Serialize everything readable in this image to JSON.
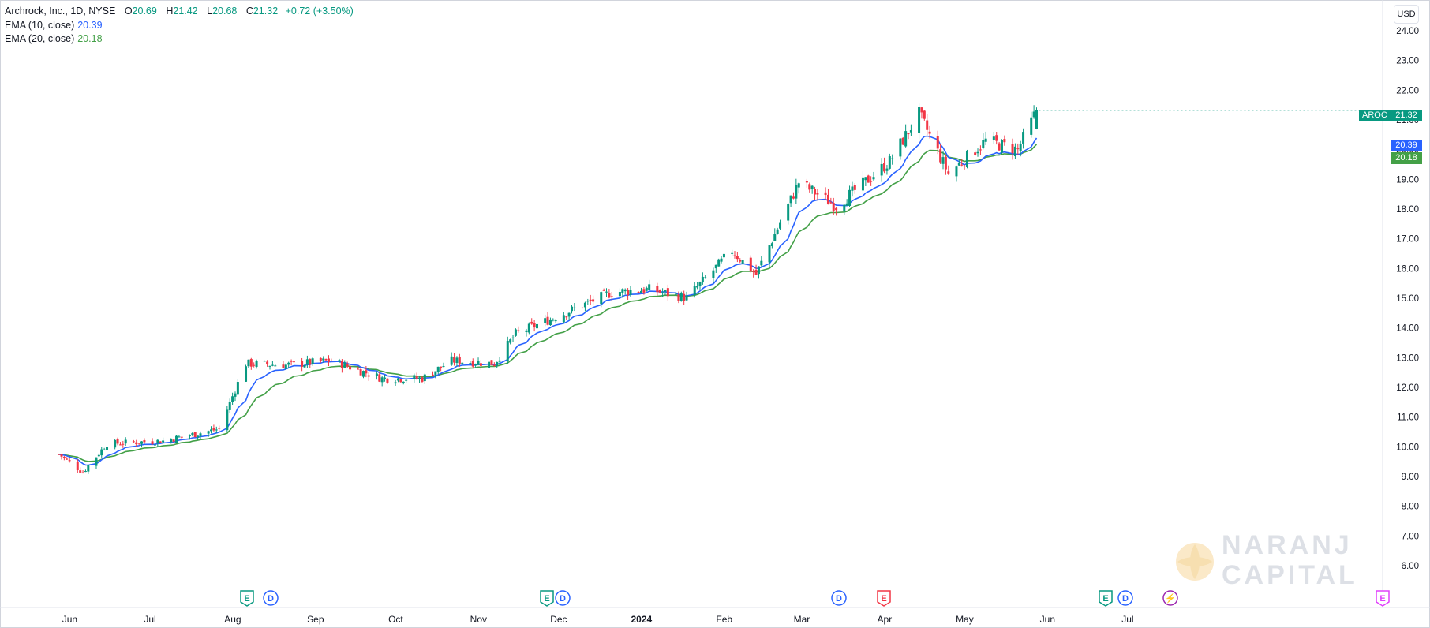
{
  "header": {
    "symbol_line": "Archrock, Inc., 1D, NYSE",
    "open_label": "O",
    "open_value": "20.69",
    "high_label": "H",
    "high_value": "21.42",
    "low_label": "L",
    "low_value": "20.68",
    "close_label": "C",
    "close_value": "21.32",
    "change": "+0.72 (+3.50%)",
    "ema10_label": "EMA (10, close)",
    "ema10_value": "20.39",
    "ema20_label": "EMA (20, close)",
    "ema20_value": "20.18"
  },
  "currency": "USD",
  "price_tags": {
    "ticker": "AROC",
    "last": "21.32",
    "ema10": "20.39",
    "ema20": "20.18"
  },
  "event_markers": [
    {
      "letter": "E",
      "kind": "earnings",
      "color": "#089981"
    },
    {
      "letter": "D",
      "kind": "dividend",
      "color": "#2962ff"
    },
    {
      "letter": "E",
      "kind": "earnings",
      "color": "#089981"
    },
    {
      "letter": "D",
      "kind": "dividend",
      "color": "#2962ff"
    },
    {
      "letter": "D",
      "kind": "dividend",
      "color": "#2962ff"
    },
    {
      "letter": "E",
      "kind": "earnings",
      "color": "#f23645"
    },
    {
      "letter": "E",
      "kind": "earnings",
      "color": "#089981"
    },
    {
      "letter": "D",
      "kind": "dividend",
      "color": "#2962ff"
    },
    {
      "letter": "⚡",
      "kind": "split",
      "color": "#9c27b0"
    },
    {
      "letter": "E",
      "kind": "earnings-upcoming",
      "color": "#e040fb"
    }
  ],
  "watermark": {
    "line1": "NARANJ",
    "line2": "CAPITAL"
  },
  "colors": {
    "up": "#089981",
    "down": "#f23645",
    "ema10": "#2962ff",
    "ema20": "#43a047",
    "header_value": "#089981"
  },
  "chart_data": {
    "type": "candlestick",
    "title": "Archrock, Inc., 1D, NYSE",
    "xlabel": "",
    "ylabel": "",
    "currency": "USD",
    "ylim": [
      5.6,
      24.5
    ],
    "y_ticks": [
      "24.00",
      "23.00",
      "22.00",
      "21.00",
      "20.00",
      "19.00",
      "18.00",
      "17.00",
      "16.00",
      "15.00",
      "14.00",
      "13.00",
      "12.00",
      "11.00",
      "10.00",
      "9.00",
      "8.00",
      "7.00",
      "6.00"
    ],
    "x_tick_labels": [
      "Jun",
      "Jul",
      "Aug",
      "Sep",
      "Oct",
      "Nov",
      "Dec",
      "2024",
      "Feb",
      "Mar",
      "Apr",
      "May",
      "Jun",
      "Jul"
    ],
    "last_close": 21.32,
    "series_points": [
      {
        "date": "2023-05-22",
        "close": 9.75
      },
      {
        "date": "2023-05-31",
        "close": 9.15
      },
      {
        "date": "2023-06-09",
        "close": 10.1
      },
      {
        "date": "2023-06-30",
        "close": 10.2
      },
      {
        "date": "2023-07-21",
        "close": 10.6
      },
      {
        "date": "2023-07-31",
        "close": 12.8
      },
      {
        "date": "2023-08-15",
        "close": 12.75
      },
      {
        "date": "2023-09-01",
        "close": 12.9
      },
      {
        "date": "2023-09-20",
        "close": 12.3
      },
      {
        "date": "2023-10-05",
        "close": 12.3
      },
      {
        "date": "2023-10-16",
        "close": 12.9
      },
      {
        "date": "2023-11-01",
        "close": 12.8
      },
      {
        "date": "2023-11-09",
        "close": 13.8
      },
      {
        "date": "2023-11-30",
        "close": 14.6
      },
      {
        "date": "2023-12-15",
        "close": 15.2
      },
      {
        "date": "2023-12-29",
        "close": 15.3
      },
      {
        "date": "2024-01-12",
        "close": 15.0
      },
      {
        "date": "2024-01-29",
        "close": 16.6
      },
      {
        "date": "2024-02-07",
        "close": 15.8
      },
      {
        "date": "2024-02-23",
        "close": 18.9
      },
      {
        "date": "2024-03-08",
        "close": 18.1
      },
      {
        "date": "2024-03-28",
        "close": 19.6
      },
      {
        "date": "2024-04-08",
        "close": 21.2
      },
      {
        "date": "2024-04-19",
        "close": 19.2
      },
      {
        "date": "2024-05-03",
        "close": 20.3
      },
      {
        "date": "2024-05-15",
        "close": 20.0
      },
      {
        "date": "2024-05-22",
        "close": 21.32
      }
    ],
    "ema10_last": 20.39,
    "ema20_last": 20.18
  }
}
